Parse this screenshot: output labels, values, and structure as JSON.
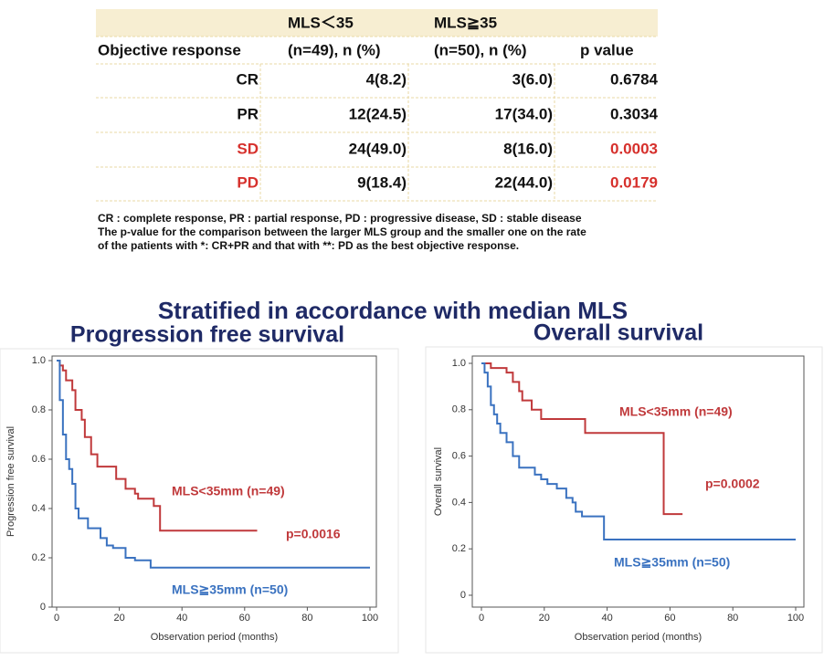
{
  "table": {
    "group_headers": [
      "MLS＜35",
      "MLS≧35"
    ],
    "columns": [
      "Objective response",
      "(n=49), n (%)",
      "(n=50), n (%)",
      "p value"
    ],
    "rows": [
      [
        "CR",
        "4(8.2)",
        "3(6.0)",
        "0.6784"
      ],
      [
        "PR",
        "12(24.5)",
        "17(34.0)",
        "0.3034"
      ],
      [
        "SD",
        "24(49.0)",
        "8(16.0)",
        "0.0003"
      ],
      [
        "PD",
        "9(18.4)",
        "22(44.0)",
        "0.0179"
      ]
    ]
  },
  "footnote": [
    "CR : complete response, PR : partial response, PD : progressive disease, SD : stable disease",
    "The p-value for the comparison between the larger MLS group and the smaller one on the rate",
    "of the patients with *: CR+PR and that with **: PD as the best objective response."
  ],
  "heading": "Stratified in accordance with median MLS",
  "chart_data": [
    {
      "type": "step",
      "title": "Progression free survival",
      "x_label": "Observation period (months)",
      "y_label": "Progression free survival",
      "xlim": [
        0,
        100
      ],
      "xticks": [
        0,
        20,
        40,
        60,
        80,
        100
      ],
      "ylim": [
        0,
        1
      ],
      "yticks": [
        0,
        0.2,
        0.4,
        0.6,
        0.8,
        {
          "value": 1,
          "label": "1.0"
        }
      ],
      "series": [
        {
          "name": "MLS<35mm (n=49)",
          "color": "#c0393b",
          "x": [
            0,
            1,
            2,
            3,
            5,
            6,
            8,
            9,
            11,
            13,
            19,
            22,
            25,
            26,
            31,
            33,
            64
          ],
          "values": [
            1.0,
            0.98,
            0.96,
            0.92,
            0.88,
            0.8,
            0.76,
            0.69,
            0.62,
            0.57,
            0.52,
            0.48,
            0.46,
            0.44,
            0.41,
            0.31,
            0.31
          ]
        },
        {
          "name": "MLS≧35mm (n=50)",
          "color": "#3a72c0",
          "x": [
            0,
            1,
            2,
            3,
            4,
            5,
            6,
            7,
            10,
            14,
            16,
            18,
            22,
            25,
            30,
            100
          ],
          "values": [
            1.0,
            0.84,
            0.7,
            0.6,
            0.56,
            0.5,
            0.4,
            0.36,
            0.32,
            0.28,
            0.25,
            0.24,
            0.2,
            0.19,
            0.16,
            0.16
          ]
        }
      ],
      "annotation": "p=0.0016"
    },
    {
      "type": "step",
      "title": "Overall survival",
      "x_label": "Observation period (months)",
      "y_label": "Overall survival",
      "xlim": [
        0,
        100
      ],
      "xticks": [
        0,
        20,
        40,
        60,
        80,
        100
      ],
      "ylim": [
        0,
        1
      ],
      "yticks": [
        0,
        0.2,
        0.4,
        0.6,
        0.8,
        {
          "value": 1,
          "label": "1.0"
        }
      ],
      "series": [
        {
          "name": "MLS<35mm (n=49)",
          "color": "#c0393b",
          "x": [
            0,
            3,
            8,
            10,
            12,
            13,
            16,
            19,
            33,
            58,
            64
          ],
          "values": [
            1.0,
            0.98,
            0.96,
            0.92,
            0.88,
            0.84,
            0.8,
            0.76,
            0.7,
            0.35,
            0.35
          ]
        },
        {
          "name": "MLS≧35mm (n=50)",
          "color": "#3a72c0",
          "x": [
            0,
            1,
            2,
            3,
            4,
            5,
            6,
            8,
            10,
            12,
            17,
            19,
            21,
            24,
            27,
            29,
            30,
            32,
            39,
            100
          ],
          "values": [
            1.0,
            0.96,
            0.9,
            0.82,
            0.78,
            0.74,
            0.7,
            0.66,
            0.6,
            0.55,
            0.52,
            0.5,
            0.48,
            0.46,
            0.42,
            0.4,
            0.36,
            0.34,
            0.24,
            0.24
          ]
        }
      ],
      "annotation": "p=0.0002"
    }
  ]
}
